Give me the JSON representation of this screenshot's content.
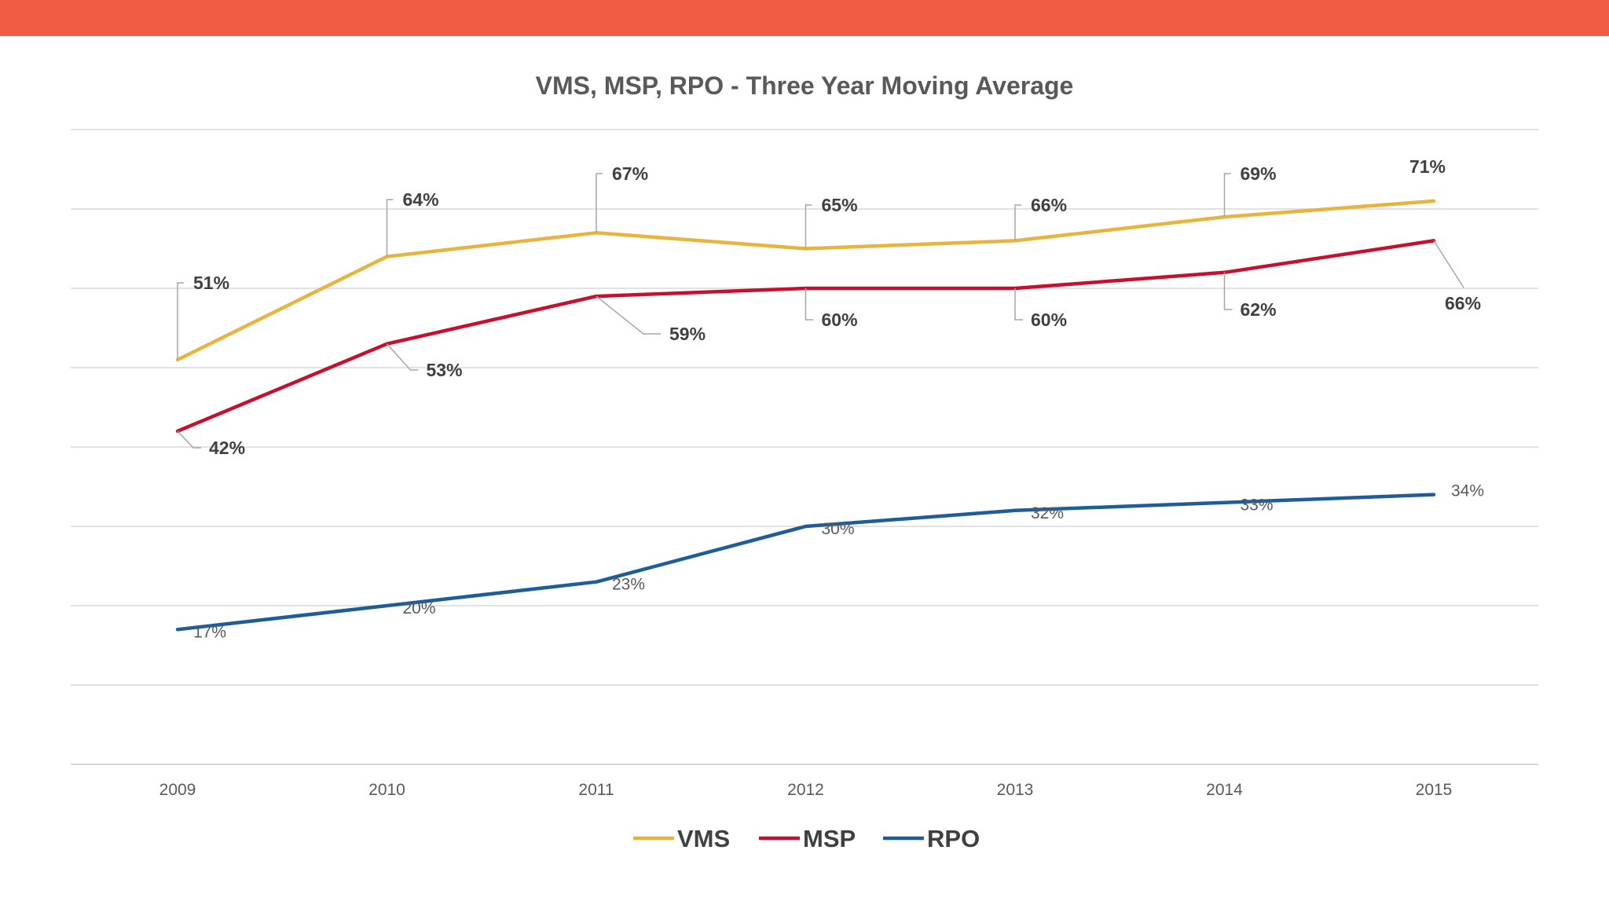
{
  "colors": {
    "banner": "#EF5E44",
    "vms": "#E8B33E",
    "msp": "#C8102E",
    "rpo": "#1F5C9A",
    "grid": "#D9D9D9"
  },
  "chart_data": {
    "type": "line",
    "title": "VMS, MSP, RPO - Three Year Moving Average",
    "categories": [
      "2009",
      "2010",
      "2011",
      "2012",
      "2013",
      "2014",
      "2015"
    ],
    "ylim": [
      0,
      80
    ],
    "ygrid_step": 10,
    "grid": true,
    "legend_position": "bottom",
    "series": [
      {
        "name": "VMS",
        "values": [
          51,
          64,
          67,
          65,
          66,
          69,
          71
        ],
        "labels": [
          "51%",
          "64%",
          "67%",
          "65%",
          "66%",
          "69%",
          "71%"
        ]
      },
      {
        "name": "MSP",
        "values": [
          42,
          53,
          59,
          60,
          60,
          62,
          66
        ],
        "labels": [
          "42%",
          "53%",
          "59%",
          "60%",
          "60%",
          "62%",
          "66%"
        ]
      },
      {
        "name": "RPO",
        "values": [
          17,
          20,
          23,
          30,
          32,
          33,
          34
        ],
        "labels": [
          "17%",
          "20%",
          "23%",
          "30%",
          "32%",
          "33%",
          "34%"
        ]
      }
    ]
  }
}
